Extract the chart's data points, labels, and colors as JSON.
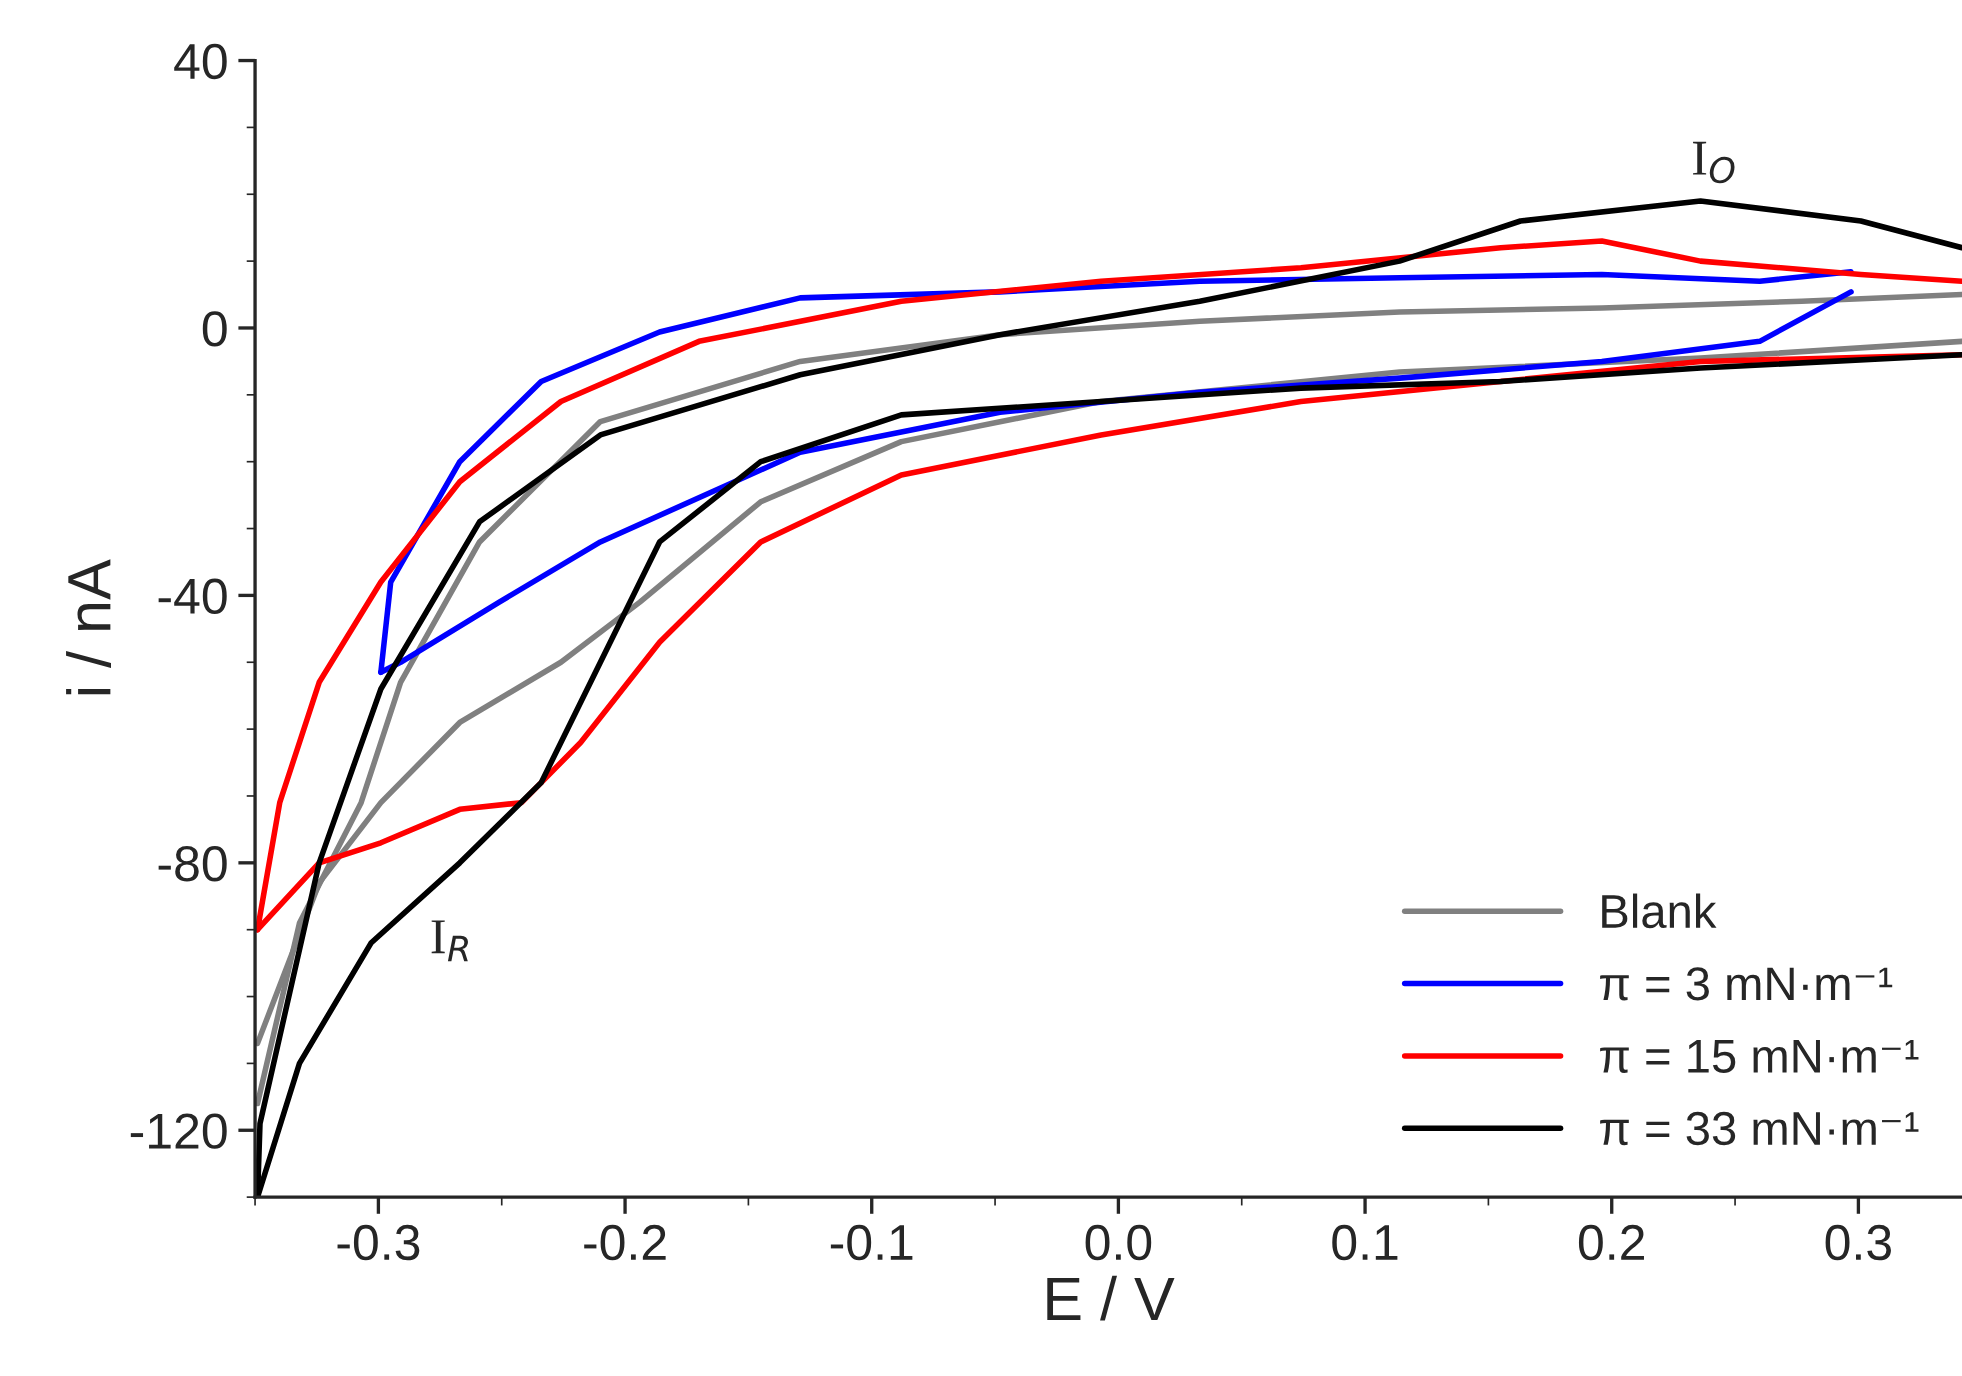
{
  "chart_data": {
    "type": "line",
    "xlabel": "E / V",
    "ylabel": "i / nA",
    "xlim": [
      -0.35,
      0.342
    ],
    "ylim": [
      -130,
      40
    ],
    "xticks": [
      -0.3,
      -0.2,
      -0.1,
      {
        "value": 0,
        "label": "0.0"
      },
      0.1,
      0.2,
      0.3
    ],
    "yticks": [
      -120,
      -80,
      -40,
      0,
      40
    ],
    "grid": false,
    "legend": "bottom right",
    "marker": "none",
    "line_style": "solid",
    "series": [
      {
        "name": "Blank",
        "color": "#808080",
        "x": [
          -0.349,
          -0.332,
          -0.307,
          -0.291,
          -0.259,
          -0.21,
          -0.129,
          -0.048,
          0.033,
          0.114,
          0.196,
          0.277,
          0.342
        ],
        "values": [
          -116,
          -89,
          -71,
          -53,
          -32,
          -14,
          -5,
          -1,
          1,
          2.4,
          3,
          4,
          5
        ]
      },
      {
        "color": "#808080",
        "x": [
          -0.349,
          -0.324,
          -0.299,
          -0.267,
          -0.226,
          -0.194,
          -0.145,
          -0.088,
          -0.007,
          0.114,
          0.236,
          0.342
        ],
        "values": [
          -107,
          -83,
          -71,
          -59,
          -50,
          -41,
          -26,
          -17,
          -11,
          -6.6,
          -4.5,
          -2
        ]
      },
      {
        "name": "π = 3 mN·m⁻¹",
        "color": "#0000ff",
        "x": [
          -0.299,
          -0.295,
          -0.267,
          -0.234,
          -0.186,
          -0.129,
          -0.048,
          0.033,
          0.114,
          0.196,
          0.26,
          0.297
        ],
        "values": [
          -51.5,
          -38,
          -20,
          -8,
          -0.6,
          4.5,
          5.4,
          7,
          7.5,
          8,
          7,
          8.4
        ]
      },
      {
        "color": "#0000ff",
        "x": [
          -0.299,
          -0.291,
          -0.251,
          -0.21,
          -0.129,
          -0.048,
          0.033,
          0.114,
          0.196,
          0.26,
          0.297
        ],
        "values": [
          -51.5,
          -50,
          -41,
          -32,
          -18.6,
          -12.6,
          -9.6,
          -7.5,
          -5,
          -2,
          5.4
        ]
      },
      {
        "name": "π = 15 mN·m⁻¹",
        "color": "#ff0000",
        "x": [
          -0.349,
          -0.34,
          -0.324,
          -0.299,
          -0.267,
          -0.226,
          -0.17,
          -0.088,
          -0.007,
          0.074,
          0.155,
          0.196,
          0.236,
          0.301,
          0.342
        ],
        "values": [
          -90,
          -71,
          -53,
          -38,
          -23,
          -11,
          -2,
          4,
          7,
          9,
          12,
          13,
          10,
          8,
          7
        ]
      },
      {
        "color": "#ff0000",
        "x": [
          -0.349,
          -0.324,
          -0.299,
          -0.267,
          -0.242,
          -0.218,
          -0.186,
          -0.145,
          -0.088,
          -0.007,
          0.074,
          0.155,
          0.236,
          0.342
        ],
        "values": [
          -90,
          -80,
          -77,
          -72,
          -71,
          -62,
          -47,
          -32,
          -22,
          -16,
          -11,
          -8,
          -5,
          -4
        ]
      },
      {
        "name": "π = 33 mN·m⁻¹",
        "color": "#000000",
        "x": [
          -0.349,
          -0.348,
          -0.324,
          -0.299,
          -0.259,
          -0.21,
          -0.129,
          -0.048,
          0.033,
          0.114,
          0.163,
          0.236,
          0.301,
          0.342
        ],
        "values": [
          -130,
          -119,
          -80,
          -54,
          -29,
          -16,
          -7,
          -1,
          4,
          10,
          16,
          19,
          16,
          12
        ]
      },
      {
        "color": "#000000",
        "x": [
          -0.349,
          -0.332,
          -0.303,
          -0.267,
          -0.234,
          -0.21,
          -0.186,
          -0.145,
          -0.088,
          -0.007,
          0.074,
          0.155,
          0.236,
          0.342
        ],
        "values": [
          -130,
          -110,
          -92,
          -80,
          -68,
          -50,
          -32,
          -20,
          -13,
          -11,
          -9,
          -8,
          -6,
          -4
        ]
      }
    ],
    "annotations": [
      "I$_{R}$",
      "I$_{O}$"
    ]
  }
}
